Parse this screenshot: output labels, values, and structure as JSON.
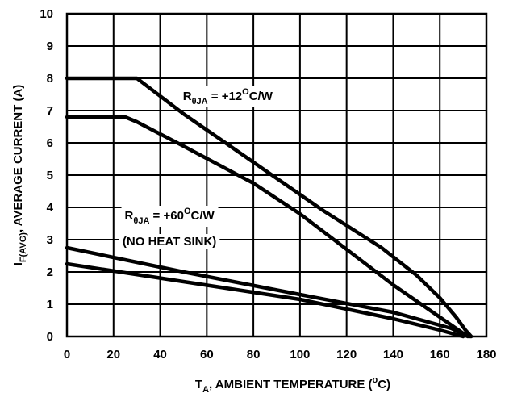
{
  "chart_data": {
    "type": "line",
    "xlabel": {
      "main": "T",
      "sub": "A",
      "rest": ", AMBIENT TEMPERATURE (",
      "sup": "o",
      "end": "C)"
    },
    "ylabel": {
      "main": "I",
      "sub": "F(AVG)",
      "rest": ", AVERAGE CURRENT (A)"
    },
    "xlim": [
      0,
      180
    ],
    "ylim": [
      0,
      10
    ],
    "xticks": [
      0,
      20,
      40,
      60,
      80,
      100,
      120,
      140,
      160,
      180
    ],
    "yticks": [
      0,
      1,
      2,
      3,
      4,
      5,
      6,
      7,
      8,
      9,
      10
    ],
    "grid": true,
    "series": [
      {
        "x": [
          0,
          30,
          50,
          80,
          110,
          135,
          150,
          160,
          167,
          171,
          173.5
        ],
        "y": [
          8.0,
          8.0,
          6.9,
          5.4,
          3.9,
          2.75,
          1.9,
          1.2,
          0.6,
          0.2,
          0
        ]
      },
      {
        "x": [
          0,
          25,
          30,
          50,
          80,
          100,
          120,
          140,
          155,
          165,
          170,
          173
        ],
        "y": [
          6.8,
          6.8,
          6.65,
          5.9,
          4.75,
          3.8,
          2.7,
          1.6,
          0.85,
          0.35,
          0.1,
          0
        ]
      },
      {
        "x": [
          0,
          50,
          100,
          140,
          165,
          172
        ],
        "y": [
          2.75,
          2.0,
          1.3,
          0.75,
          0.25,
          0
        ]
      },
      {
        "x": [
          0,
          50,
          100,
          140,
          160,
          170
        ],
        "y": [
          2.25,
          1.7,
          1.15,
          0.55,
          0.2,
          0
        ]
      }
    ],
    "annotations": [
      {
        "main": "R",
        "sub": "θJA",
        "mid": " = +12",
        "sup": "O",
        "end": "C/W",
        "x": 69,
        "y": 7.45
      },
      {
        "main": "R",
        "sub": "θJA",
        "mid": " = +60",
        "sup": "O",
        "end": "C/W",
        "x": 44,
        "y": 3.75
      },
      {
        "main": "(NO HEAT SINK)",
        "x": 44,
        "y": 2.95
      }
    ]
  }
}
